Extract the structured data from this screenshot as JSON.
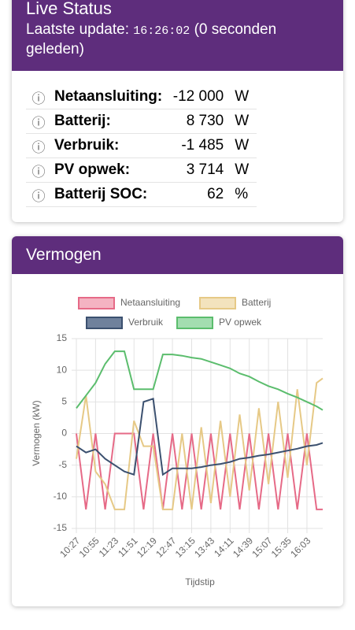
{
  "status": {
    "title": "Live Status",
    "update_label": "Laatste update:",
    "update_time": "16:26:02",
    "update_ago": "(0 seconden geleden)",
    "rows": [
      [
        "Netaansluiting:",
        "-12 000",
        "W"
      ],
      [
        "Batterij:",
        "8 730",
        "W"
      ],
      [
        "Verbruik:",
        "-1 485",
        "W"
      ],
      [
        "PV opwek:",
        "3 714",
        "W"
      ],
      [
        "Batterij SOC:",
        "62",
        "%"
      ]
    ]
  },
  "chart_data": {
    "type": "line",
    "title": "Vermogen",
    "x_label": "Tijdstip",
    "y_label": "Vermogen (kW)",
    "x": [
      "10:27",
      "10:41",
      "10:55",
      "11:09",
      "11:23",
      "11:37",
      "11:51",
      "12:05",
      "12:19",
      "12:33",
      "12:47",
      "13:01",
      "13:15",
      "13:29",
      "13:43",
      "13:57",
      "14:11",
      "14:25",
      "14:39",
      "14:53",
      "15:07",
      "15:21",
      "15:35",
      "15:49",
      "16:03",
      "16:17",
      "16:26"
    ],
    "xlim": [
      "10:27",
      "16:26"
    ],
    "xticks": [
      "10:27",
      "10:55",
      "11:23",
      "11:51",
      "12:19",
      "12:47",
      "13:15",
      "13:43",
      "14:11",
      "14:39",
      "15:07",
      "15:35",
      "16:03"
    ],
    "ylim": [
      -15,
      15
    ],
    "yticks": [
      -15,
      -10,
      -5,
      0,
      5,
      10,
      15
    ],
    "grid": true,
    "series": [
      {
        "name": "Netaansluiting",
        "color": "#e66a87",
        "fill": "#f4b3c2",
        "values": [
          0,
          -12,
          0,
          -12,
          0,
          0,
          0,
          -12,
          0,
          -12,
          0,
          -12,
          0,
          -12,
          0,
          -12,
          0,
          -12,
          0,
          -12,
          0,
          -12,
          0,
          -12,
          0,
          -12,
          -12
        ]
      },
      {
        "name": "Batterij",
        "color": "#e6c986",
        "fill": "#f3e3bd",
        "values": [
          -4,
          6,
          -6,
          -8,
          -12,
          -12,
          2,
          -2,
          -2,
          -12,
          -12,
          0,
          -12,
          1,
          -11,
          2,
          -10,
          3,
          -9,
          4,
          -8,
          5,
          -7,
          7,
          -5,
          8,
          8.73
        ]
      },
      {
        "name": "Verbruik",
        "color": "#3b506f",
        "fill": "#6f819c",
        "values": [
          -2,
          -3,
          -2.5,
          -4,
          -5,
          -6,
          -6.5,
          5,
          5.5,
          -6.5,
          -5.5,
          -5.5,
          -5.5,
          -5.3,
          -5,
          -4.8,
          -4.5,
          -4,
          -3.8,
          -3.5,
          -3.3,
          -3,
          -2.7,
          -2.4,
          -2,
          -1.8,
          -1.485
        ]
      },
      {
        "name": "PV opwek",
        "color": "#5bbd6d",
        "fill": "#a3ddb0",
        "values": [
          4,
          6,
          8,
          11,
          13,
          13,
          7,
          7,
          7,
          12.5,
          12.5,
          12.3,
          12,
          11.8,
          11.3,
          10.8,
          10.3,
          9.5,
          9,
          8.2,
          7.5,
          7,
          6.3,
          5.7,
          5,
          4.3,
          3.714
        ]
      }
    ]
  }
}
